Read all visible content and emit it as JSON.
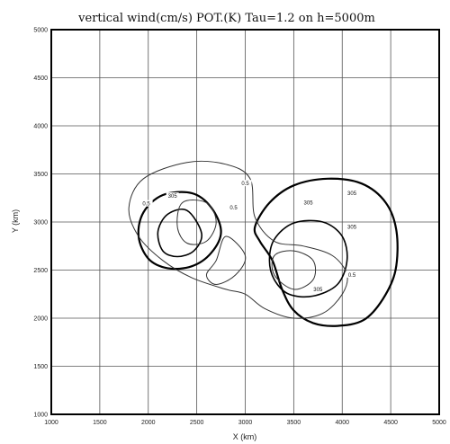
{
  "chart_data": {
    "type": "contour",
    "title": "vertical wind(cm/s) POT.(K)  Tau=1.2 on h=5000m",
    "xlabel": "X (km)",
    "ylabel": "Y (km)",
    "xlim": [
      1000,
      5000
    ],
    "ylim": [
      1000,
      5000
    ],
    "xticks": [
      "1000",
      "1500",
      "2000",
      "2500",
      "3000",
      "3500",
      "4000",
      "4500",
      "5000"
    ],
    "yticks": [
      "1000",
      "1500",
      "2000",
      "2500",
      "3000",
      "3500",
      "4000",
      "4500",
      "5000"
    ],
    "grid": true,
    "contour_labels": [
      {
        "text": "0.5",
        "x": 3000,
        "y": 3400
      },
      {
        "text": "0.5",
        "x": 1980,
        "y": 3190
      },
      {
        "text": "305",
        "x": 2250,
        "y": 3270
      },
      {
        "text": "0.5",
        "x": 2880,
        "y": 3150
      },
      {
        "text": "305",
        "x": 3650,
        "y": 3200
      },
      {
        "text": "305",
        "x": 4100,
        "y": 3300
      },
      {
        "text": "305",
        "x": 4100,
        "y": 2950
      },
      {
        "text": "0.5",
        "x": 4100,
        "y": 2450
      },
      {
        "text": "305",
        "x": 3750,
        "y": 2300
      }
    ],
    "potential_temperature_contours": [
      {
        "value": 305,
        "points": [
          [
            3100,
            2950
          ],
          [
            3250,
            3200
          ],
          [
            3500,
            3380
          ],
          [
            3850,
            3450
          ],
          [
            4200,
            3400
          ],
          [
            4450,
            3200
          ],
          [
            4560,
            2900
          ],
          [
            4550,
            2500
          ],
          [
            4420,
            2200
          ],
          [
            4220,
            1980
          ],
          [
            3950,
            1920
          ],
          [
            3700,
            1950
          ],
          [
            3500,
            2080
          ],
          [
            3380,
            2300
          ],
          [
            3280,
            2600
          ],
          [
            3150,
            2800
          ],
          [
            3100,
            2950
          ]
        ]
      },
      {
        "value": 305,
        "points": [
          [
            2750,
            2900
          ],
          [
            2650,
            2680
          ],
          [
            2450,
            2540
          ],
          [
            2200,
            2520
          ],
          [
            2000,
            2620
          ],
          [
            1900,
            2850
          ],
          [
            1950,
            3100
          ],
          [
            2150,
            3280
          ],
          [
            2450,
            3300
          ],
          [
            2650,
            3150
          ],
          [
            2750,
            2900
          ]
        ]
      },
      {
        "value": 304,
        "points": [
          [
            3300,
            2820
          ],
          [
            3500,
            2990
          ],
          [
            3800,
            3000
          ],
          [
            4000,
            2850
          ],
          [
            4050,
            2600
          ],
          [
            3950,
            2350
          ],
          [
            3700,
            2230
          ],
          [
            3450,
            2250
          ],
          [
            3300,
            2400
          ],
          [
            3250,
            2600
          ],
          [
            3300,
            2820
          ]
        ]
      },
      {
        "value": 304,
        "points": [
          [
            2550,
            2880
          ],
          [
            2470,
            2700
          ],
          [
            2300,
            2640
          ],
          [
            2150,
            2700
          ],
          [
            2100,
            2900
          ],
          [
            2200,
            3080
          ],
          [
            2400,
            3120
          ],
          [
            2550,
            2880
          ]
        ]
      }
    ],
    "vertical_wind_contours": [
      {
        "value": 0.5,
        "points": [
          [
            3100,
            3050
          ],
          [
            3050,
            3450
          ],
          [
            2800,
            3600
          ],
          [
            2400,
            3620
          ],
          [
            1950,
            3450
          ],
          [
            1800,
            3150
          ],
          [
            1900,
            2850
          ],
          [
            2150,
            2600
          ],
          [
            2450,
            2420
          ],
          [
            2800,
            2300
          ],
          [
            3000,
            2250
          ],
          [
            3200,
            2100
          ],
          [
            3500,
            2000
          ],
          [
            3800,
            2050
          ],
          [
            4000,
            2250
          ],
          [
            4050,
            2450
          ],
          [
            3900,
            2650
          ],
          [
            3600,
            2750
          ],
          [
            3300,
            2800
          ],
          [
            3100,
            3050
          ]
        ]
      },
      {
        "value": 0.5,
        "points": [
          [
            2300,
            2950
          ],
          [
            2350,
            3200
          ],
          [
            2600,
            3200
          ],
          [
            2700,
            3000
          ],
          [
            2600,
            2800
          ],
          [
            2400,
            2780
          ],
          [
            2300,
            2950
          ]
        ]
      },
      {
        "value": 0.5,
        "points": [
          [
            2800,
            2850
          ],
          [
            2700,
            2600
          ],
          [
            2600,
            2450
          ],
          [
            2700,
            2350
          ],
          [
            2900,
            2450
          ],
          [
            3000,
            2650
          ],
          [
            2800,
            2850
          ]
        ]
      },
      {
        "value": 0.5,
        "points": [
          [
            3300,
            2450
          ],
          [
            3300,
            2650
          ],
          [
            3500,
            2700
          ],
          [
            3700,
            2600
          ],
          [
            3700,
            2400
          ],
          [
            3500,
            2300
          ],
          [
            3300,
            2450
          ]
        ]
      }
    ]
  }
}
